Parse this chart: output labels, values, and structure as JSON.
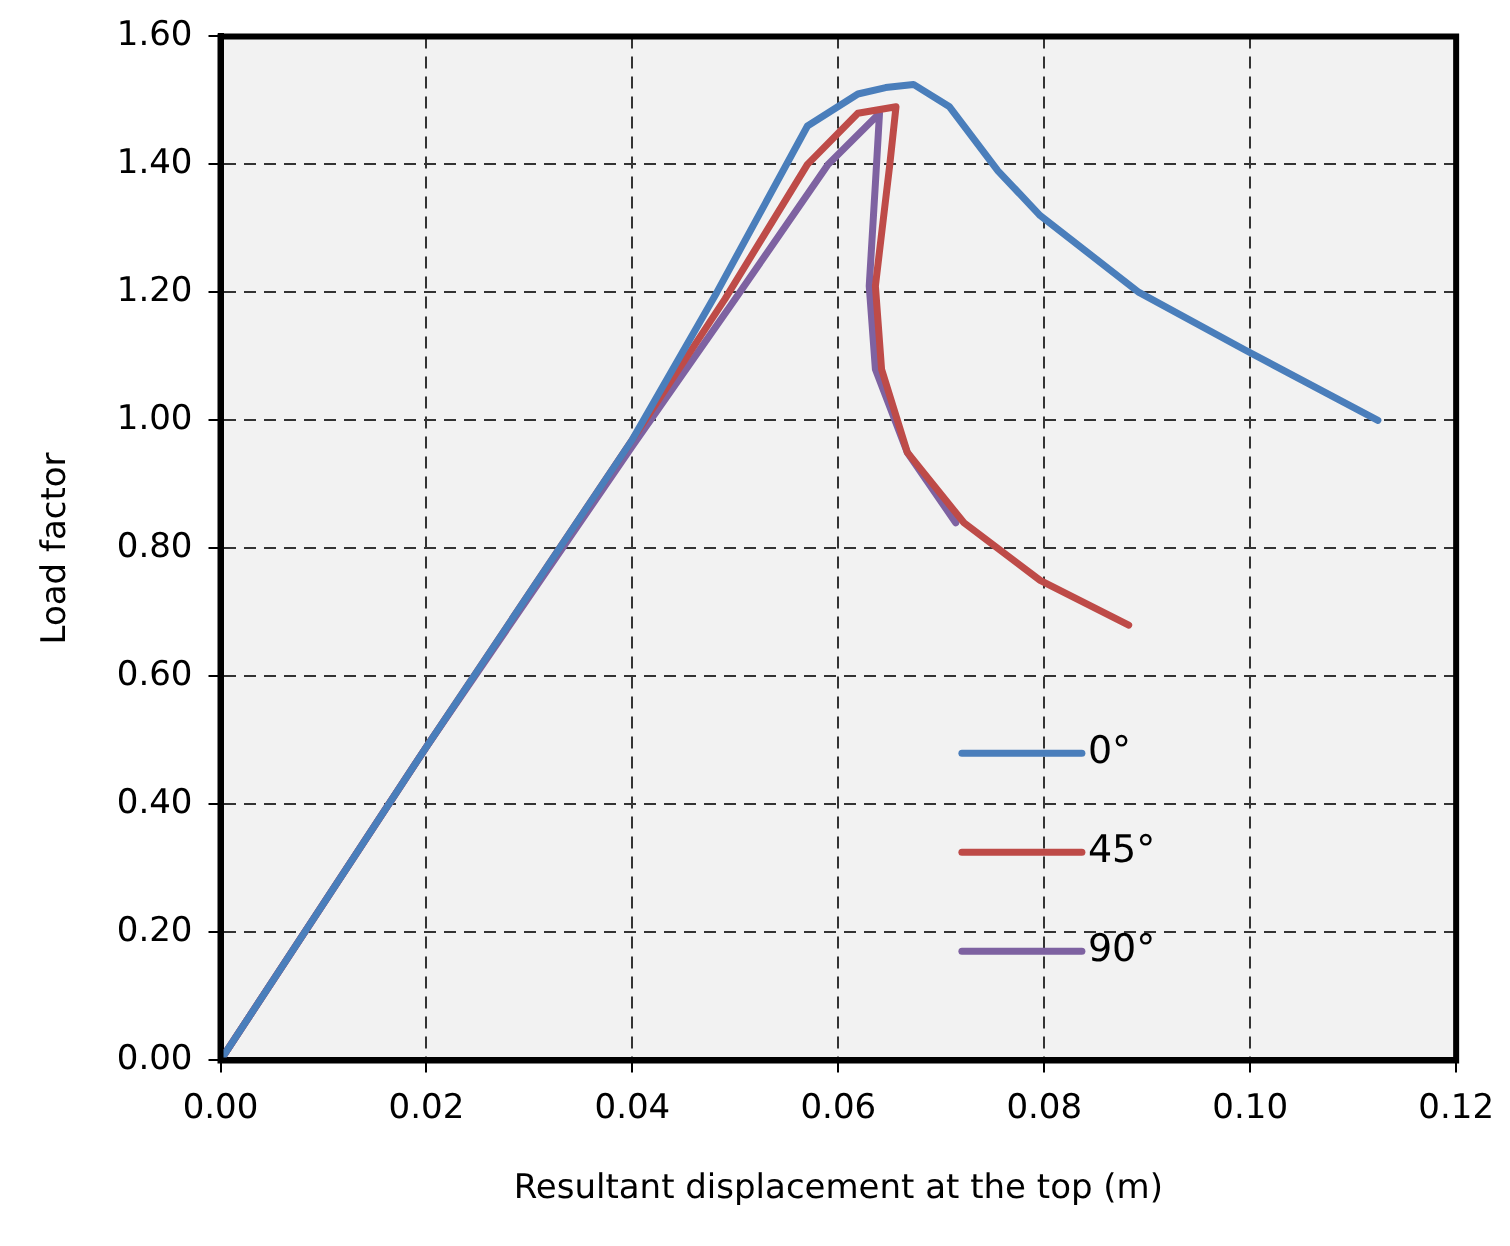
{
  "chart_data": {
    "type": "line",
    "xlabel": "Resultant displacement at the top (m)",
    "ylabel": "Load factor",
    "xlim": [
      0,
      0.12
    ],
    "ylim": [
      0,
      1.6
    ],
    "xticks": [
      {
        "value": 0,
        "label": "0.00"
      },
      {
        "value": 0.02,
        "label": "0.02"
      },
      {
        "value": 0.04,
        "label": "0.04"
      },
      {
        "value": 0.06,
        "label": "0.06"
      },
      {
        "value": 0.08,
        "label": "0.08"
      },
      {
        "value": 0.1,
        "label": "0.10"
      },
      {
        "value": 0.12,
        "label": "0.12"
      }
    ],
    "yticks": [
      {
        "value": 0,
        "label": "0.00"
      },
      {
        "value": 0.2,
        "label": "0.20"
      },
      {
        "value": 0.4,
        "label": "0.40"
      },
      {
        "value": 0.6,
        "label": "0.60"
      },
      {
        "value": 0.8,
        "label": "0.80"
      },
      {
        "value": 1,
        "label": "1.00"
      },
      {
        "value": 1.2,
        "label": "1.20"
      },
      {
        "value": 1.4,
        "label": "1.40"
      },
      {
        "value": 1.6,
        "label": "1.60"
      }
    ],
    "grid": true,
    "legend": "right",
    "marker": "none",
    "line_style": "solid",
    "series": [
      {
        "name": "0°",
        "color": "#4a7ebb",
        "x": [
          0,
          0.02,
          0.04,
          0.0482,
          0.057,
          0.0619,
          0.0646,
          0.0673,
          0.0708,
          0.0755,
          0.0796,
          0.0892,
          0.0995,
          0.1124
        ],
        "values": [
          0,
          0.49,
          0.97,
          1.2,
          1.46,
          1.51,
          1.52,
          1.525,
          1.49,
          1.39,
          1.32,
          1.2,
          1.11,
          1.0
        ]
      },
      {
        "name": "45°",
        "color": "#be4b48",
        "x": [
          0,
          0.02,
          0.04,
          0.049,
          0.057,
          0.0619,
          0.0656,
          0.065,
          0.0636,
          0.0642,
          0.0667,
          0.0722,
          0.0796,
          0.0882
        ],
        "values": [
          0,
          0.49,
          0.97,
          1.19,
          1.4,
          1.48,
          1.49,
          1.4,
          1.21,
          1.08,
          0.95,
          0.84,
          0.75,
          0.68
        ]
      },
      {
        "name": "90°",
        "color": "#7e62a1",
        "x": [
          0,
          0.02,
          0.04,
          0.05,
          0.059,
          0.064,
          0.0636,
          0.063,
          0.0636,
          0.0667,
          0.0714
        ],
        "values": [
          0,
          0.49,
          0.96,
          1.19,
          1.4,
          1.48,
          1.37,
          1.21,
          1.08,
          0.95,
          0.84
        ]
      }
    ]
  }
}
